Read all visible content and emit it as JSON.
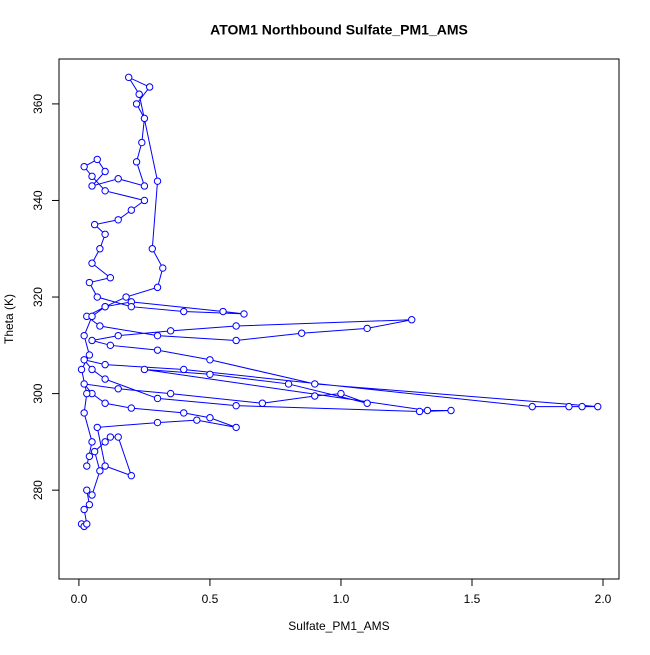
{
  "chart_data": {
    "type": "line",
    "marker": "circle",
    "title": "ATOM1 Northbound Sulfate_PM1_AMS",
    "x_label": "Sulfate_PM1_AMS",
    "y_label": "Theta (K)",
    "color": "#0000ff",
    "xlim": [
      -0.076,
      2.061
    ],
    "ylim": [
      261.6,
      369.3
    ],
    "xticks": [
      {
        "value": 0,
        "label": "0.0"
      },
      {
        "value": 0.5,
        "label": "0.5"
      },
      {
        "value": 1,
        "label": "1.0"
      },
      {
        "value": 1.5,
        "label": "1.5"
      },
      {
        "value": 2,
        "label": "2.0"
      }
    ],
    "yticks": [
      280,
      300,
      320,
      340,
      360
    ],
    "x": [
      0.01,
      0.02,
      0.03,
      0.02,
      0.04,
      0.03,
      0.05,
      0.08,
      0.06,
      0.04,
      0.1,
      0.12,
      0.15,
      0.2,
      0.1,
      0.07,
      0.3,
      0.45,
      0.6,
      0.5,
      0.4,
      0.2,
      0.1,
      0.05,
      0.02,
      0.15,
      0.35,
      0.7,
      0.9,
      1.0,
      1.1,
      0.8,
      0.5,
      0.25,
      1.33,
      1.42,
      1.3,
      0.6,
      0.3,
      0.1,
      0.05,
      0.02,
      0.1,
      0.4,
      1.73,
      1.87,
      1.92,
      1.98,
      0.9,
      0.5,
      0.3,
      0.12,
      0.05,
      0.15,
      0.35,
      0.6,
      1.27,
      1.1,
      0.85,
      0.6,
      0.3,
      0.08,
      0.03,
      0.1,
      0.2,
      0.55,
      0.63,
      0.4,
      0.2,
      0.07,
      0.04,
      0.12,
      0.05,
      0.08,
      0.1,
      0.06,
      0.15,
      0.2,
      0.25,
      0.1,
      0.05,
      0.02,
      0.07,
      0.1,
      0.05,
      0.15,
      0.25,
      0.22,
      0.24,
      0.25,
      0.22,
      0.27,
      0.19,
      0.23,
      0.3,
      0.28,
      0.32,
      0.3,
      0.18,
      0.1,
      0.05,
      0.02,
      0.04,
      0.01,
      0.03,
      0.02,
      0.05,
      0.03
    ],
    "y": [
      273,
      272.5,
      273,
      276,
      277,
      280,
      279,
      284,
      288,
      287,
      290,
      291,
      291,
      283,
      285,
      293,
      294,
      294.5,
      293,
      295,
      296,
      297,
      298,
      300,
      302,
      301,
      300,
      298,
      299.5,
      300,
      298,
      302,
      304,
      305,
      296.5,
      296.5,
      296.3,
      297.5,
      299,
      303,
      305,
      307,
      306,
      305,
      297.3,
      297.3,
      297.3,
      297.3,
      302,
      307,
      309,
      310,
      311,
      312,
      313,
      314,
      315.3,
      313.5,
      312.5,
      311,
      312,
      314,
      316,
      318,
      319,
      317,
      316.5,
      317,
      318,
      320,
      323,
      324,
      327,
      330,
      333,
      335,
      336,
      338,
      340,
      342,
      345,
      347,
      348.5,
      346,
      343,
      344.5,
      343,
      348,
      352,
      357,
      360,
      363.5,
      365.5,
      362,
      344,
      330,
      326,
      322,
      320,
      318,
      316,
      312,
      308,
      305,
      300,
      296,
      290,
      285
    ]
  }
}
